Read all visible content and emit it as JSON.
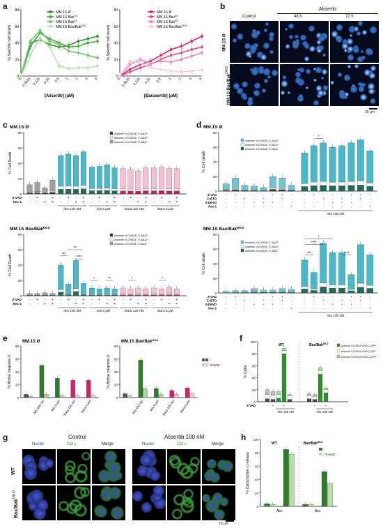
{
  "panels": {
    "a": {
      "label": "a",
      "left": {
        "ylabel": "% Specific cell death",
        "xlabel": "[Alisertib] (μM)",
        "legend": [
          "MM.1S Ø",
          "MM.1S Bax",
          "MM.1S Bak",
          "MM.1S Bax/Bak"
        ],
        "legend_sup": [
          "",
          "KO",
          "KO",
          "DKO"
        ]
      },
      "right": {
        "ylabel": "% Specific cell death",
        "xlabel": "[Barasertib] (μM)",
        "legend": [
          "MM.1S Ø",
          "MM.1S Bax",
          "MM.1S Bak",
          "MM.1S Bax/Bak"
        ],
        "legend_sup": [
          "",
          "KO",
          "KO",
          "DKO"
        ]
      }
    },
    "b": {
      "label": "b",
      "header": "Alisertib",
      "cols": [
        "Control",
        "48 h",
        "72 h"
      ],
      "rows": [
        "MM.1S Ø",
        "MM.1S Bax/Bak"
      ],
      "row_sup": [
        "",
        "DKO"
      ],
      "scale": "25 μm"
    },
    "c": {
      "label": "c",
      "top_title": "MM.1S Ø",
      "bottom_title": "MM.1S Bax/Bak",
      "bottom_sup": "DKO",
      "ylabel": "% Cell Death",
      "legend": [
        "Annexin V-DY634⁺/7-AAD⁺",
        "Annexin V-DY634⁻/7-AAD⁺",
        "Annexin V-DY634⁺/7-AAD⁻"
      ],
      "row_labels": [
        "Z-VAD",
        "Nec-1"
      ],
      "groups": [
        "Alis 100 nM",
        "Alis 5 μM",
        "Bara 125 nM",
        "Bara 5 μM"
      ]
    },
    "d": {
      "label": "d",
      "top_title": "MM.1S Ø",
      "bottom_title": "MM.1S Bax/Bak",
      "bottom_sup": "DKO",
      "ylabel": "% Cell death",
      "legend": [
        "Annexin V-DY634⁺/7-AAD⁺",
        "Annexin V-DY634⁻/7-AAD⁺",
        "Annexin V-DY634⁺/7-AAD⁻"
      ],
      "row_labels": [
        "Z-VAD",
        "Z-IETD",
        "Z-DEVD",
        "Nec-1"
      ],
      "group": "Alis 100 nM"
    },
    "e": {
      "label": "e",
      "left_title": "MM.1S Ø",
      "right_title": "MM.1S Bax/Bak",
      "right_sup": "DKO",
      "ylabel": "% Active caspase-3",
      "cats": [
        "Alis 100 nM",
        "Alis 5 μM",
        "Bara 125 nM",
        "Bara 5 μM"
      ],
      "legend": [
        "-",
        "Z-VAD"
      ]
    },
    "f": {
      "label": "f",
      "ylabel": "% Cells",
      "groups": [
        "WT",
        "Bax/Bak"
      ],
      "group_sup": [
        "",
        "DKO"
      ],
      "row_label": "Z-VAD",
      "cats": [
        "Alis 100 nM",
        "Alis 100 nM"
      ],
      "legend": [
        "Annexin V-DY634⁺/DiOC₆(3)ˡᵒʷ",
        "Annexin V-DY634⁻/DiOC₆(3)ˡᵒʷ",
        "Annexin V-DY634⁺/DiOC₆(3)ʰⁱᵍʰ"
      ]
    },
    "g": {
      "label": "g",
      "sections": [
        "Control",
        "Alisertib 100 nM"
      ],
      "cols": [
        "Nuclei",
        "Cyt c",
        "Merge",
        "Nuclei",
        "Cyt c",
        "Merge"
      ],
      "rows": [
        "WT",
        "Bax/Bak"
      ],
      "row_sup": [
        "",
        "DKO"
      ],
      "scale": "10 μm"
    },
    "h": {
      "label": "h",
      "ylabel": "% Cytochrome c release",
      "groups": [
        "WT",
        "Bax/Bak"
      ],
      "group_sup": [
        "",
        "DKO"
      ],
      "legend": [
        "-",
        "+Z-VAD"
      ],
      "cats": [
        "Alis",
        "Alis"
      ]
    }
  },
  "chart_data": [
    {
      "type": "line",
      "title": "",
      "xlabel": "[Alisertib] (μM)",
      "ylabel": "% Specific cell death",
      "x": [
        "0",
        "0.0625",
        "0.125",
        "0.25",
        "0.5",
        "1",
        "2",
        "4",
        "6"
      ],
      "ylim": [
        0,
        80
      ],
      "series": [
        {
          "name": "MM.1S Ø",
          "color": "#2f8f2f",
          "values": [
            0,
            40,
            44,
            38,
            35,
            37,
            42,
            45,
            48
          ]
        },
        {
          "name": "MM.1S BaxKO",
          "color": "#3fa33f",
          "values": [
            0,
            36,
            52,
            45,
            40,
            35,
            36,
            40,
            42
          ]
        },
        {
          "name": "MM.1S BakKO",
          "color": "#6cc06c",
          "values": [
            0,
            42,
            55,
            42,
            38,
            30,
            28,
            25,
            22
          ]
        },
        {
          "name": "MM.1S Bax/BakDKO",
          "color": "#b5e0a8",
          "values": [
            0,
            25,
            46,
            35,
            12,
            9,
            10,
            10,
            12
          ]
        }
      ]
    },
    {
      "type": "line",
      "title": "",
      "xlabel": "[Barasertib] (μM)",
      "ylabel": "% Specific cell death",
      "x": [
        "0",
        "0.0625",
        "0.125",
        "0.25",
        "0.5",
        "1",
        "2",
        "4",
        "6"
      ],
      "ylim": [
        0,
        80
      ],
      "series": [
        {
          "name": "MM.1S Ø",
          "color": "#d6206b",
          "values": [
            0,
            8,
            14,
            18,
            25,
            32,
            36,
            42,
            48
          ]
        },
        {
          "name": "MM.1S BaxKO",
          "color": "#e3478a",
          "values": [
            0,
            5,
            10,
            14,
            20,
            25,
            28,
            32,
            35
          ]
        },
        {
          "name": "MM.1S BakKO",
          "color": "#ef86b1",
          "values": [
            0,
            14,
            20,
            15,
            18,
            17,
            20,
            24,
            28
          ]
        },
        {
          "name": "MM.1S Bax/BakDKO",
          "color": "#f8c8da",
          "values": [
            0,
            18,
            16,
            10,
            8,
            6,
            5,
            6,
            7
          ]
        }
      ]
    },
    {
      "type": "bar",
      "title": "MM.1S Ø",
      "ylabel": "% Active caspase-3",
      "categories": [
        "-",
        "Alis 100 nM",
        "Alis 5 μM",
        "Bara 125 nM",
        "Bara 5 μM"
      ],
      "ylim": [
        0,
        80
      ],
      "series": [
        {
          "name": "-",
          "values": [
            5,
            50,
            30,
            27,
            27
          ]
        },
        {
          "name": "Z-VAD",
          "values": [
            2,
            5,
            3,
            3,
            3
          ]
        }
      ]
    },
    {
      "type": "bar",
      "title": "MM.1S Bax/BakDKO",
      "ylabel": "% Active caspase-3",
      "categories": [
        "-",
        "Alis 100 nM",
        "Alis 5 μM",
        "Bara 125 nM",
        "Bara 5 μM"
      ],
      "ylim": [
        0,
        80
      ],
      "series": [
        {
          "name": "-",
          "values": [
            6,
            58,
            14,
            11,
            15
          ]
        },
        {
          "name": "Z-VAD",
          "values": [
            3,
            14,
            5,
            5,
            6
          ]
        }
      ]
    },
    {
      "type": "bar",
      "title": "",
      "ylabel": "% Cytochrome c release",
      "categories": [
        "WT -",
        "WT Alis",
        "Bax/BakDKO -",
        "Bax/BakDKO Alis"
      ],
      "ylim": [
        0,
        100
      ],
      "series": [
        {
          "name": "-",
          "values": [
            4,
            85,
            3,
            52
          ]
        },
        {
          "name": "+Z-VAD",
          "values": [
            3,
            78,
            3,
            34
          ]
        }
      ]
    }
  ]
}
